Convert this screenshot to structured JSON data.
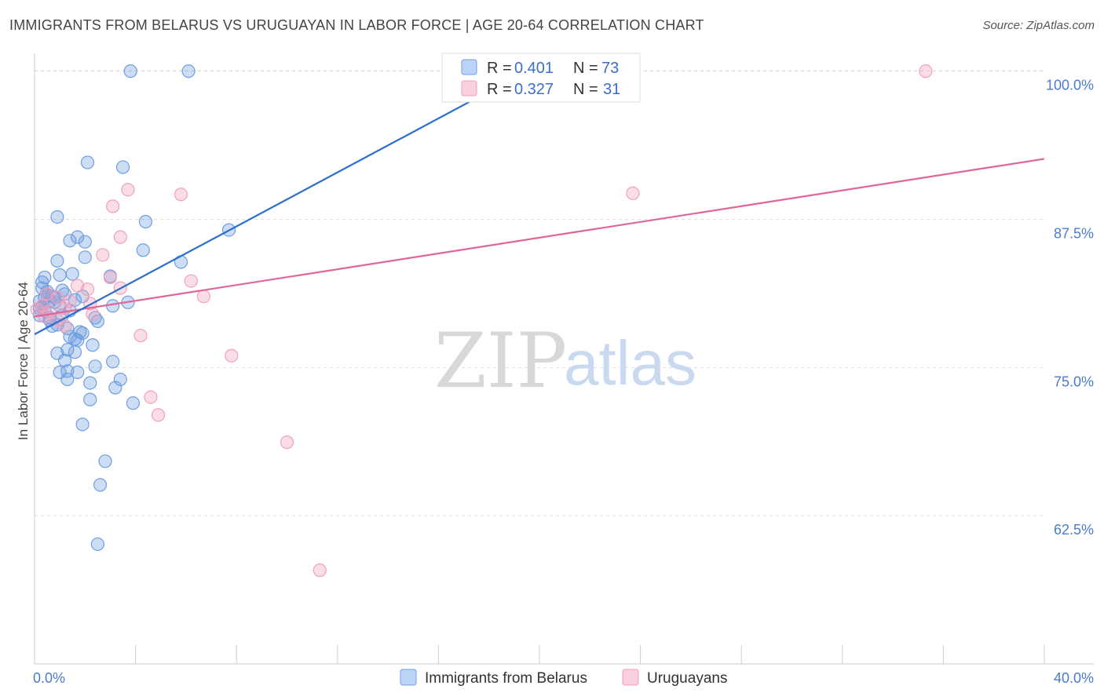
{
  "title": "IMMIGRANTS FROM BELARUS VS URUGUAYAN IN LABOR FORCE | AGE 20-64 CORRELATION CHART",
  "source": "Source: ZipAtlas.com",
  "watermark": {
    "zip": "ZIP",
    "atlas": "atlas"
  },
  "colors": {
    "blue": "#6f9fe0",
    "blue_line": "#2a6fd0",
    "pink": "#f2a0bb",
    "pink_line": "#e0669a",
    "tick": "#4a7bd0",
    "grid": "#dddddd"
  },
  "legend": {
    "rows": [
      {
        "r_label": "R = ",
        "r_value": "0.401",
        "n_label": "N = ",
        "n_value": "73",
        "color": "#6f9fe0"
      },
      {
        "r_label": "R = ",
        "r_value": "0.327",
        "n_label": "N = ",
        "n_value": "31",
        "color": "#f2a0bb"
      }
    ]
  },
  "bottom_legend": [
    "Immigrants from Belarus",
    "Uruguayans"
  ],
  "chart_data": {
    "type": "scatter",
    "title": "IMMIGRANTS FROM BELARUS VS URUGUAYAN IN LABOR FORCE | AGE 20-64 CORRELATION CHART",
    "xlabel": "",
    "ylabel": "In Labor Force | Age 20-64",
    "xlim": [
      0,
      40
    ],
    "ylim": [
      50,
      101.5
    ],
    "x_tick_labels": [
      "0.0%",
      "40.0%"
    ],
    "y_ticks": [
      62.5,
      75.0,
      87.5,
      100.0
    ],
    "y_tick_labels": [
      "62.5%",
      "75.0%",
      "87.5%",
      "100.0%"
    ],
    "series": [
      {
        "name": "Immigrants from Belarus",
        "color": "#6f9fe0",
        "R": 0.401,
        "N": 73,
        "trend": {
          "x": [
            0.0,
            19.5
          ],
          "y": [
            77.8,
            100.0
          ]
        },
        "points": [
          [
            3.8,
            100.0
          ],
          [
            6.1,
            100.0
          ],
          [
            2.1,
            92.3
          ],
          [
            3.5,
            91.9
          ],
          [
            0.9,
            87.7
          ],
          [
            4.4,
            87.3
          ],
          [
            7.7,
            86.6
          ],
          [
            1.4,
            85.7
          ],
          [
            1.7,
            86.0
          ],
          [
            2.0,
            85.6
          ],
          [
            4.3,
            84.9
          ],
          [
            0.9,
            84.0
          ],
          [
            2.0,
            84.3
          ],
          [
            5.8,
            83.9
          ],
          [
            1.0,
            82.8
          ],
          [
            1.5,
            82.9
          ],
          [
            3.0,
            82.7
          ],
          [
            0.3,
            82.2
          ],
          [
            0.4,
            82.6
          ],
          [
            0.3,
            81.7
          ],
          [
            0.5,
            81.4
          ],
          [
            0.7,
            81.0
          ],
          [
            1.2,
            81.2
          ],
          [
            0.2,
            80.6
          ],
          [
            0.4,
            80.9
          ],
          [
            0.6,
            80.6
          ],
          [
            0.8,
            80.5
          ],
          [
            1.6,
            80.7
          ],
          [
            0.3,
            80.1
          ],
          [
            1.0,
            80.2
          ],
          [
            1.4,
            79.8
          ],
          [
            3.7,
            80.5
          ],
          [
            3.1,
            80.2
          ],
          [
            0.2,
            79.4
          ],
          [
            0.6,
            79.2
          ],
          [
            1.1,
            79.4
          ],
          [
            2.4,
            79.2
          ],
          [
            0.7,
            78.5
          ],
          [
            0.9,
            78.6
          ],
          [
            1.3,
            78.3
          ],
          [
            1.8,
            78.0
          ],
          [
            1.6,
            77.4
          ],
          [
            1.4,
            77.6
          ],
          [
            1.9,
            77.9
          ],
          [
            1.7,
            77.3
          ],
          [
            2.3,
            76.9
          ],
          [
            1.3,
            76.5
          ],
          [
            1.6,
            76.3
          ],
          [
            0.9,
            76.2
          ],
          [
            3.1,
            75.5
          ],
          [
            1.2,
            75.6
          ],
          [
            2.4,
            75.1
          ],
          [
            1.0,
            74.6
          ],
          [
            1.3,
            74.7
          ],
          [
            1.7,
            74.6
          ],
          [
            3.4,
            74.0
          ],
          [
            1.3,
            74.0
          ],
          [
            2.2,
            73.7
          ],
          [
            3.2,
            73.3
          ],
          [
            2.2,
            72.3
          ],
          [
            3.9,
            72.0
          ],
          [
            1.9,
            70.2
          ],
          [
            2.8,
            67.1
          ],
          [
            2.6,
            65.1
          ],
          [
            2.5,
            60.1
          ],
          [
            0.4,
            79.8
          ],
          [
            0.8,
            80.9
          ],
          [
            1.1,
            81.5
          ],
          [
            0.5,
            81.1
          ],
          [
            0.2,
            80.0
          ],
          [
            0.6,
            79.0
          ],
          [
            1.9,
            81.0
          ],
          [
            2.5,
            78.9
          ]
        ]
      },
      {
        "name": "Uruguayans",
        "color": "#f2a0bb",
        "R": 0.327,
        "N": 31,
        "trend": {
          "x": [
            0.0,
            40.0
          ],
          "y": [
            79.3,
            92.6
          ]
        },
        "points": [
          [
            35.3,
            100.0
          ],
          [
            3.7,
            90.0
          ],
          [
            5.8,
            89.6
          ],
          [
            23.7,
            89.7
          ],
          [
            3.1,
            88.6
          ],
          [
            3.4,
            86.0
          ],
          [
            2.7,
            84.5
          ],
          [
            3.0,
            82.6
          ],
          [
            6.2,
            82.3
          ],
          [
            1.7,
            81.9
          ],
          [
            2.1,
            81.6
          ],
          [
            3.4,
            81.7
          ],
          [
            6.7,
            81.0
          ],
          [
            0.5,
            81.2
          ],
          [
            0.9,
            80.9
          ],
          [
            1.4,
            80.6
          ],
          [
            2.2,
            80.4
          ],
          [
            0.3,
            80.2
          ],
          [
            1.2,
            80.0
          ],
          [
            0.6,
            79.7
          ],
          [
            0.4,
            79.3
          ],
          [
            2.3,
            79.5
          ],
          [
            0.9,
            79.0
          ],
          [
            1.2,
            78.5
          ],
          [
            4.2,
            77.7
          ],
          [
            7.8,
            76.0
          ],
          [
            4.6,
            72.5
          ],
          [
            4.9,
            71.0
          ],
          [
            10.0,
            68.7
          ],
          [
            11.3,
            57.9
          ],
          [
            0.1,
            79.9
          ]
        ]
      }
    ]
  }
}
